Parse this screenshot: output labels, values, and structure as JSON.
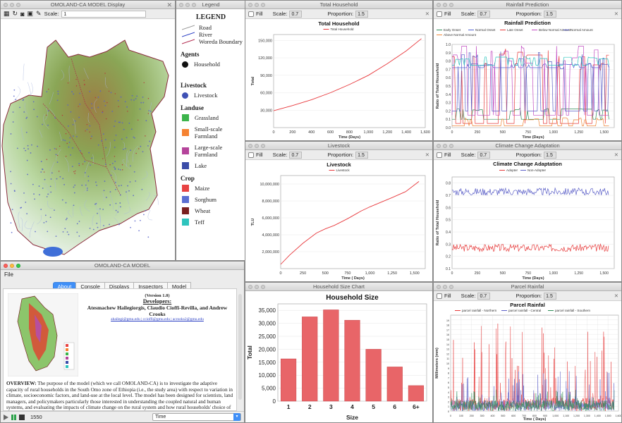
{
  "display_window": {
    "title": "OMOLAND-CA MODEL Display",
    "scale_label": "Scale:",
    "scale_value": "1"
  },
  "legend_window": {
    "title": "Legend",
    "heading": "LEGEND",
    "lines": [
      {
        "label": "Road",
        "color": "#999999"
      },
      {
        "label": "River",
        "color": "#2b3fc4"
      },
      {
        "label": "Woreda Boundary",
        "color": "#b0264a"
      }
    ],
    "sections": [
      {
        "name": "Agents",
        "items": [
          {
            "label": "Household",
            "color": "#111111",
            "shape": "circle"
          }
        ]
      },
      {
        "name": "Livestock",
        "items": [
          {
            "label": "Livestock",
            "color": "#3f51b5",
            "shape": "circle"
          }
        ]
      },
      {
        "name": "Landuse",
        "items": [
          {
            "label": "Grassland",
            "color": "#3cb44b",
            "shape": "square"
          },
          {
            "label": "Small-scale Farmland",
            "color": "#f58231",
            "shape": "square"
          },
          {
            "label": "Large-scale Farmland",
            "color": "#b5449b",
            "shape": "square"
          },
          {
            "label": "Lake",
            "color": "#3b4ca8",
            "shape": "square"
          }
        ]
      },
      {
        "name": "Crop",
        "items": [
          {
            "label": "Maize",
            "color": "#e84343",
            "shape": "square"
          },
          {
            "label": "Sorghum",
            "color": "#5b6fd1",
            "shape": "square"
          },
          {
            "label": "Wheat",
            "color": "#7a1f1f",
            "shape": "square"
          },
          {
            "label": "Teff",
            "color": "#2ec4bd",
            "shape": "square"
          }
        ]
      }
    ]
  },
  "control_window": {
    "title": "OMOLAND-CA MODEL",
    "menu": "File",
    "tabs": [
      "About",
      "Console",
      "Displays",
      "Inspectors",
      "Model"
    ],
    "active_tab": "About",
    "version": "(Version 1.0)",
    "developers_heading": "Developers:",
    "developers": "Atesmachew Hailegiorgis, Claudio Cioffi-Revilla, and Andrew Crooks",
    "emails": "ahailegi@gmu.edu | ccioffi@gmu.edu | acrooks2@gmu.edu",
    "overview_label": "OVERVIEW:",
    "overview_text": "The purpose of the model (which we call OMOLAND-CA) is to investigate the adaptive capacity of rural households in the South Omo zone of Ethiopia (i.e., the study area) with respect to variation in climate, socioeconomic factors, and land-use at the local level. The model has been designed for scientists, land managers, and policymakers particularly those interested in understanding the coupled natural and human systems, and evaluating the impacts of climate change on the rural system and how rural households' choice of livelihood affect their adaptive capacity.",
    "step_count": "1550",
    "time_select": "Time"
  },
  "chart_controls": {
    "fill_label": "Fill",
    "scale_label": "Scale:",
    "scale_value": "0.7",
    "proportion_label": "Proportion:",
    "proportion_value": "1.5"
  },
  "charts": {
    "total_household": {
      "window_title": "Total Household",
      "chart_data": {
        "type": "line",
        "title": "Total Household",
        "legend": [
          "Total Household"
        ],
        "xlabel": "Time (Days)",
        "ylabel": "Total",
        "xlim": [
          0,
          1600
        ],
        "ylim": [
          0,
          160000
        ],
        "xticks": [
          "0",
          "200",
          "400",
          "600",
          "800",
          "1,000",
          "1,200",
          "1,400",
          "1,600"
        ],
        "yticks": [
          "30,000",
          "60,000",
          "90,000",
          "120,000",
          "150,000"
        ],
        "color": "#e8383c",
        "x": [
          0,
          200,
          400,
          600,
          800,
          1000,
          1200,
          1400,
          1560
        ],
        "y": [
          29000,
          38000,
          48000,
          60000,
          74000,
          90000,
          110000,
          132000,
          153000
        ]
      }
    },
    "livestock": {
      "window_title": "Livestock",
      "chart_data": {
        "type": "line",
        "title": "Livestock",
        "legend": [
          "Livestock"
        ],
        "xlabel": "Time ( Days)",
        "ylabel": "TLU",
        "xlim": [
          0,
          1620
        ],
        "ylim": [
          0,
          11000000
        ],
        "xticks": [
          "0",
          "250",
          "500",
          "750",
          "1,000",
          "1,250",
          "1,500"
        ],
        "yticks": [
          "2,000,000",
          "4,000,000",
          "6,000,000",
          "8,000,000",
          "10,000,000"
        ],
        "color": "#e8383c",
        "x": [
          0,
          100,
          250,
          400,
          500,
          600,
          750,
          900,
          1000,
          1250,
          1400,
          1550
        ],
        "y": [
          500000,
          1600000,
          3000000,
          4200000,
          4700000,
          5100000,
          5900000,
          6800000,
          7300000,
          8400000,
          9100000,
          10300000
        ]
      }
    },
    "household_size": {
      "window_title": "Household Size Chart",
      "chart_data": {
        "type": "bar",
        "title": "Household Size",
        "xlabel": "Size",
        "ylabel": "Total",
        "categories": [
          "1",
          "2",
          "3",
          "4",
          "5",
          "6",
          "6+"
        ],
        "values": [
          16300,
          32500,
          35200,
          31200,
          20000,
          13200,
          6000
        ],
        "ylim": [
          0,
          37500
        ],
        "yticks": [
          "0",
          "5,000",
          "10,000",
          "15,000",
          "20,000",
          "25,000",
          "30,000",
          "35,000"
        ],
        "color": "#e86568"
      }
    },
    "rainfall_prediction": {
      "window_title": "Rainfall Prediction",
      "chart_data": {
        "type": "line",
        "title": "Rainfall Prediction",
        "xlabel": "Time (Days)",
        "ylabel": "Ratio of Total Household",
        "xlim": [
          0,
          1600
        ],
        "ylim": [
          0,
          1.0
        ],
        "xticks": [
          "0",
          "250",
          "500",
          "750",
          "1,000",
          "1,250",
          "1,500"
        ],
        "yticks": [
          "0.0",
          "0.1",
          "0.2",
          "0.3",
          "0.4",
          "0.5",
          "0.6",
          "0.7",
          "0.8",
          "0.9",
          "1.0"
        ],
        "series": [
          {
            "name": "Early Onset",
            "color": "#2e8b57"
          },
          {
            "name": "Normal Onset",
            "color": "#4c5fd0"
          },
          {
            "name": "Late Onset",
            "color": "#e63b3b"
          },
          {
            "name": "Below Normal Amount",
            "color": "#c14ac0"
          },
          {
            "name": "Normal Amount",
            "color": "#5b5fc7"
          },
          {
            "name": "Above Normal Amount",
            "color": "#f0883a"
          },
          {
            "name": "",
            "color": "#2ec4bd"
          }
        ]
      }
    },
    "climate_adaptation": {
      "window_title": "Climate Change Adaptation",
      "chart_data": {
        "type": "line",
        "title": "Climate Change Adaptation",
        "xlabel": "Time (Days)",
        "ylabel": "Ratio of Total Household",
        "xlim": [
          0,
          1600
        ],
        "ylim": [
          0.1,
          0.85
        ],
        "xticks": [
          "0",
          "250",
          "500",
          "750",
          "1,000",
          "1,250",
          "1,500"
        ],
        "yticks": [
          "0.1",
          "0.2",
          "0.3",
          "0.4",
          "0.5",
          "0.6",
          "0.7",
          "0.8"
        ],
        "series": [
          {
            "name": "Adopter",
            "color": "#e63b3b",
            "mean": 0.27
          },
          {
            "name": "Non-Adopter",
            "color": "#5b5fc7",
            "mean": 0.73
          }
        ]
      }
    },
    "parcel_rainfall": {
      "window_title": "Parcel Rainfal",
      "chart_data": {
        "type": "line",
        "title": "Parcel Rainfal",
        "xlabel": "Time ( Days)",
        "ylabel": "Millimeters (mm)",
        "xlim": [
          0,
          1600
        ],
        "ylim": [
          0,
          20
        ],
        "xticks": [
          "0",
          "100",
          "200",
          "300",
          "400",
          "500",
          "600",
          "700",
          "800",
          "900",
          "1,000",
          "1,100",
          "1,200",
          "1,300",
          "1,400",
          "1,500",
          "1,600"
        ],
        "yticks": [
          "0",
          "1",
          "2",
          "3",
          "4",
          "5",
          "6",
          "7",
          "8",
          "9",
          "10",
          "11",
          "12",
          "13",
          "14",
          "15",
          "16",
          "17",
          "18",
          "19"
        ],
        "series": [
          {
            "name": "parcel rainfall - Northern",
            "color": "#e63b3b"
          },
          {
            "name": "parcel rainfall - Central",
            "color": "#5b5fc7"
          },
          {
            "name": "parcel rainfall - Southern",
            "color": "#2e8b57"
          }
        ]
      }
    }
  }
}
